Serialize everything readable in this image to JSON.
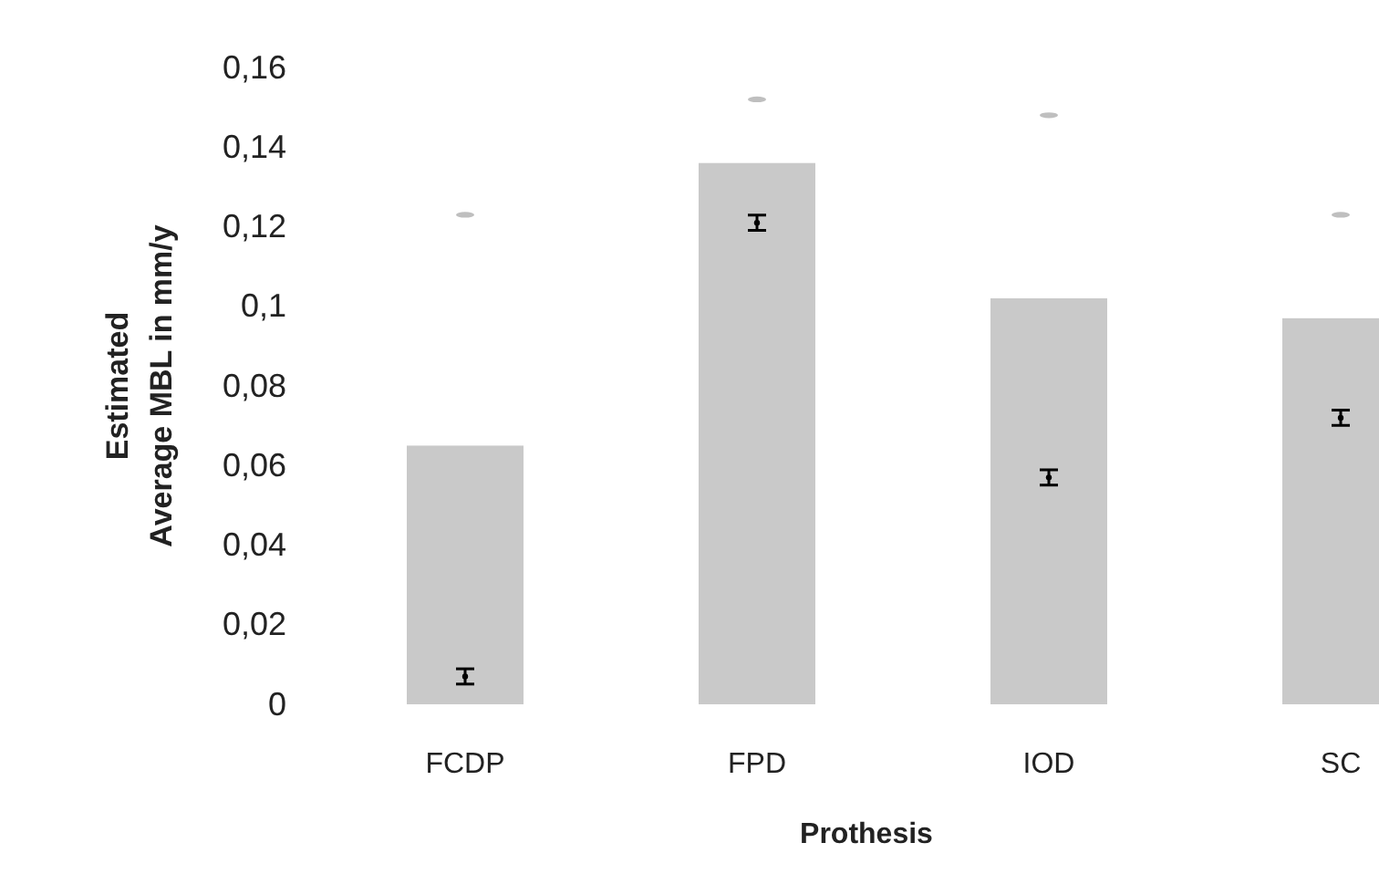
{
  "chart_data": {
    "type": "bar",
    "xlabel": "Prothesis",
    "ylabel": "Estimated\nAverage MBL in mm/y",
    "categories": [
      "FCDP",
      "FPD",
      "IOD",
      "SC"
    ],
    "series": [
      {
        "color": "#c9c9c9",
        "values": [
          0.065,
          0.136,
          0.102,
          0.097
        ]
      },
      {
        "type": "scatter",
        "color": "#000000",
        "values": [
          0.007,
          0.121,
          0.057,
          0.072
        ],
        "errors": [
          0.001,
          0.001,
          0.001,
          0.001
        ]
      },
      {
        "type": "scatter",
        "color": "#bfbfbf",
        "values": [
          0.123,
          0.152,
          0.148,
          0.123
        ]
      }
    ],
    "ylim": [
      0,
      0.16
    ],
    "yticks": [
      0,
      {
        "value": 0.02,
        "label": "0,02"
      },
      {
        "value": 0.04,
        "label": "0,04"
      },
      {
        "value": 0.06,
        "label": "0,06"
      },
      {
        "value": 0.08,
        "label": "0,08"
      },
      {
        "value": 0.1,
        "label": "0,1"
      },
      {
        "value": 0.12,
        "label": "0,12"
      },
      {
        "value": 0.14,
        "label": "0,14"
      },
      {
        "value": 0.16,
        "label": "0,16"
      }
    ],
    "grid": false
  }
}
